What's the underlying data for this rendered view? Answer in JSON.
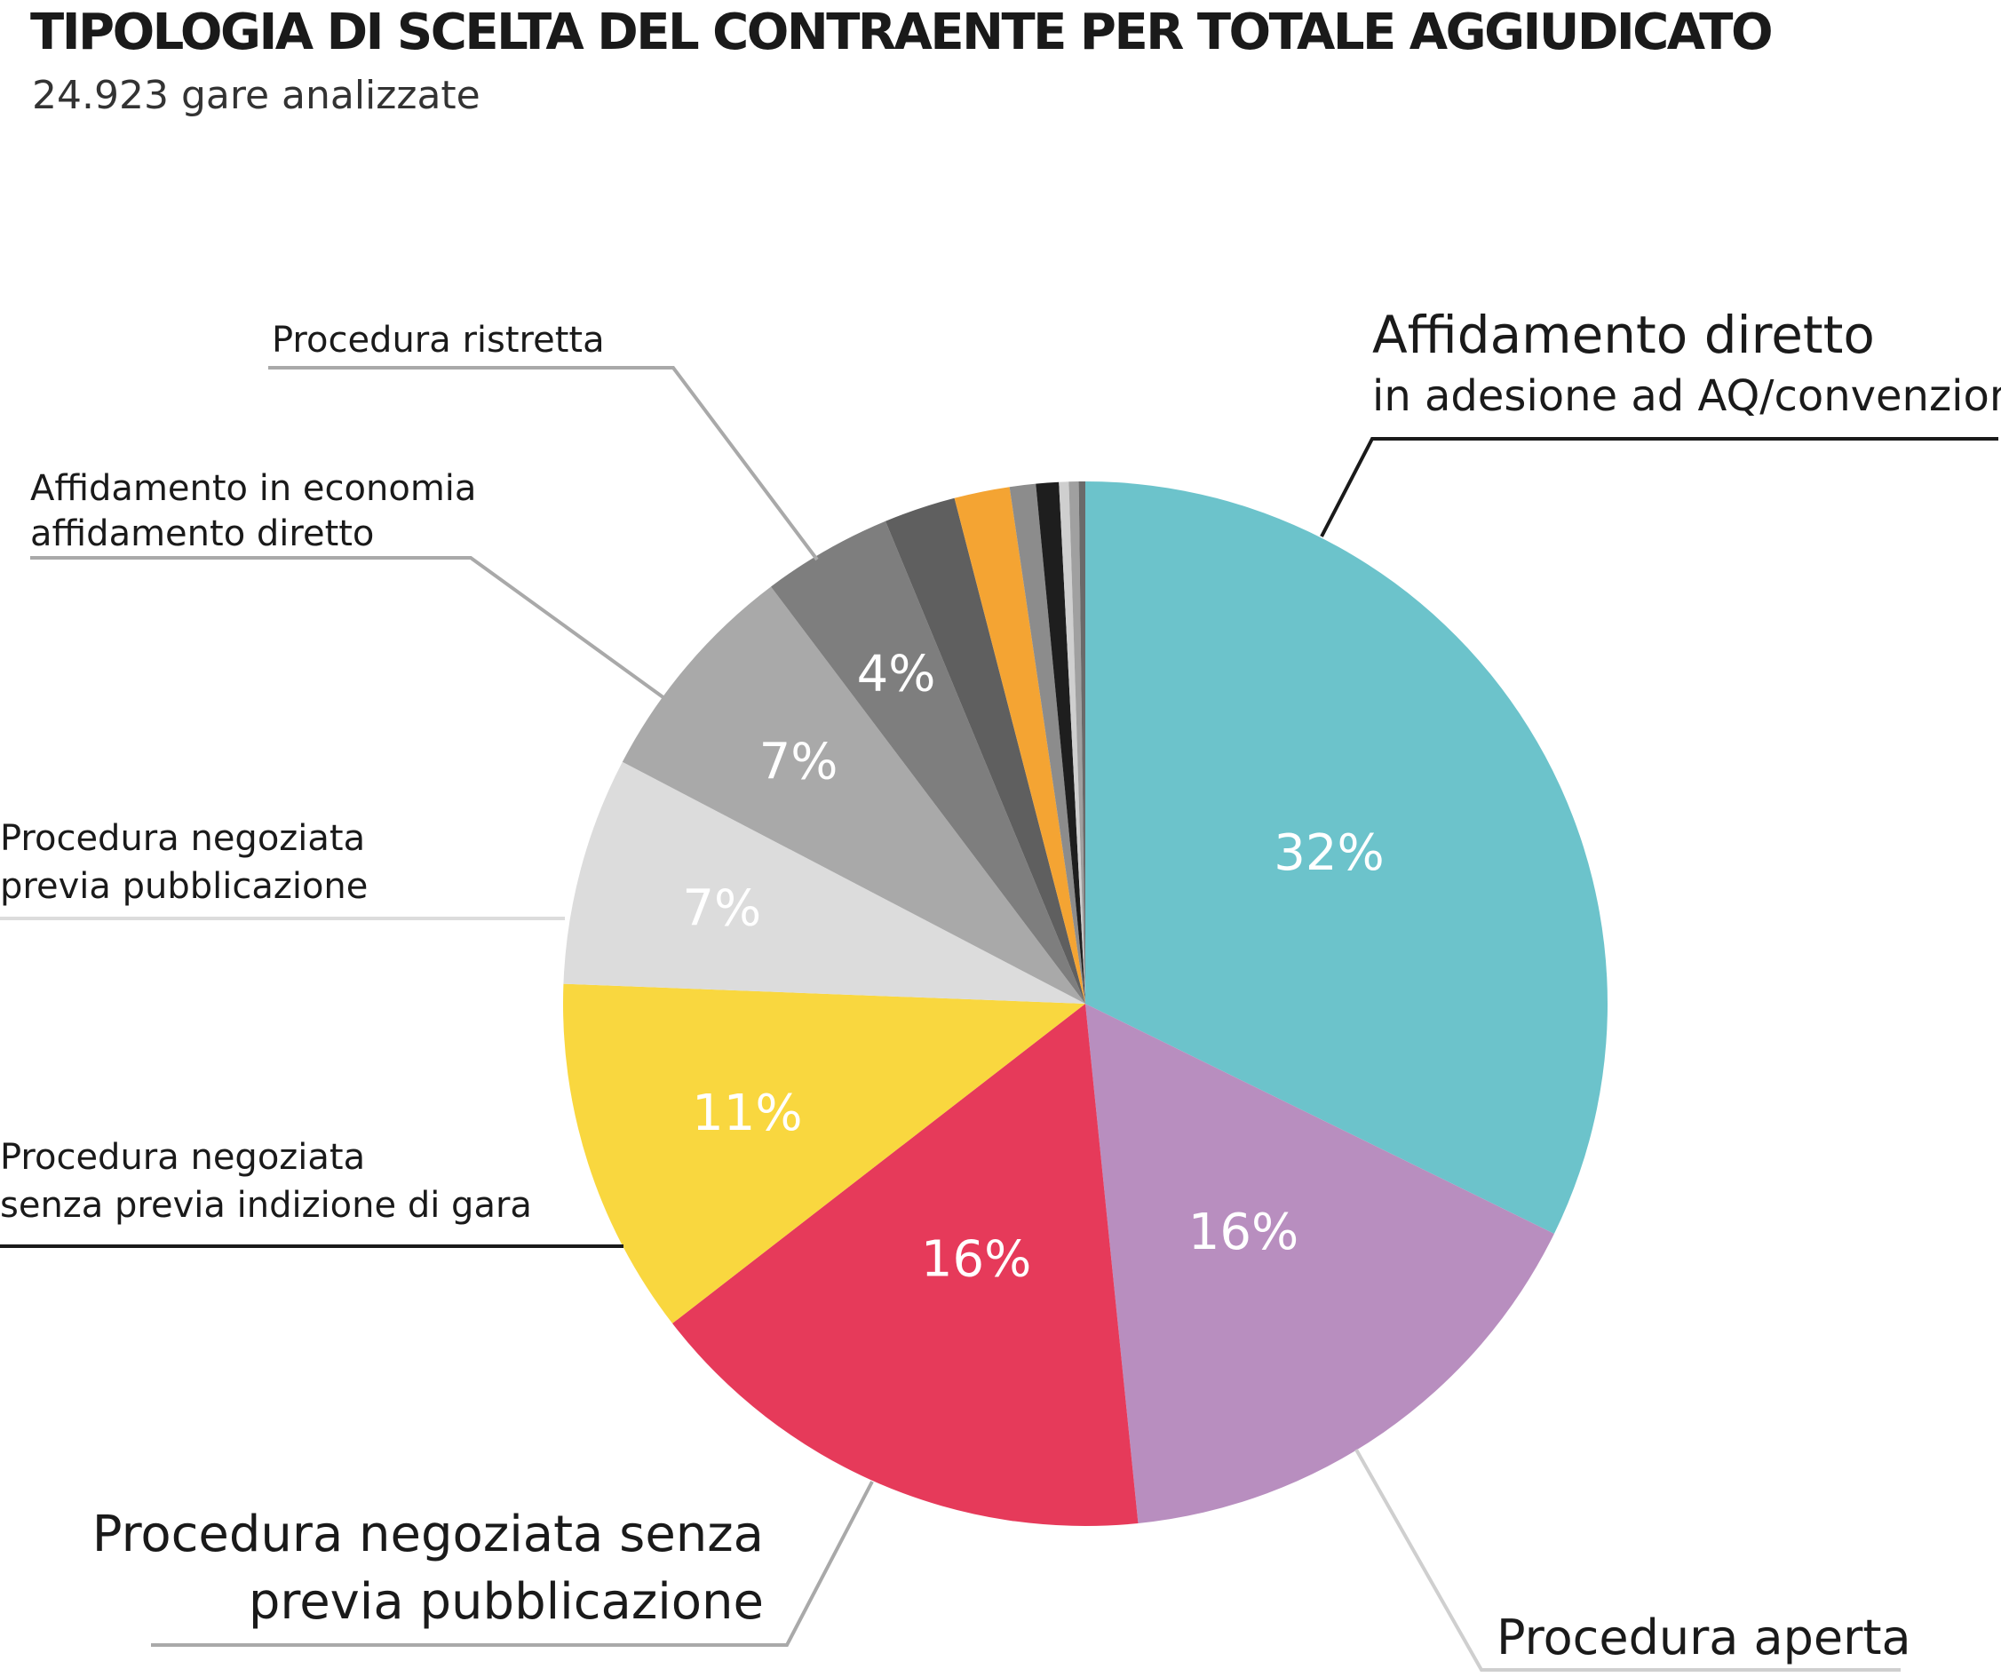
{
  "chart_data": {
    "type": "pie",
    "title": "TIPOLOGIA DI SCELTA DEL CONTRAENTE PER TOTALE AGGIUDICATO",
    "subtitle": "24.923 gare analizzate",
    "start_angle_deg": 0,
    "direction": "clockwise",
    "slices": [
      {
        "label_lines": [
          "Affidamento diretto",
          "in adesione ad AQ/convenzione"
        ],
        "value": 32,
        "display": "32%",
        "color": "#6cc3cb"
      },
      {
        "label_lines": [
          "Procedura aperta"
        ],
        "value": 16,
        "display": "16%",
        "color": "#b88ebf"
      },
      {
        "label_lines": [
          "Procedura negoziata senza",
          "previa pubblicazione"
        ],
        "value": 16,
        "display": "16%",
        "color": "#e63a5a"
      },
      {
        "label_lines": [
          "Procedura negoziata",
          "senza previa indizione di gara"
        ],
        "value": 11,
        "display": "11%",
        "color": "#f9d73f"
      },
      {
        "label_lines": [
          "Procedura negoziata",
          "previa pubblicazione"
        ],
        "value": 7,
        "display": "7%",
        "color": "#dcdcdc"
      },
      {
        "label_lines": [
          "Affidamento in economia",
          "affidamento diretto"
        ],
        "value": 7,
        "display": "7%",
        "color": "#a9a9a9"
      },
      {
        "label_lines": [
          "Procedura ristretta"
        ],
        "value": 4,
        "display": "4%",
        "color": "#7e7e7e"
      },
      {
        "value": 2.2,
        "color": "#5f5f5f"
      },
      {
        "value": 1.7,
        "color": "#f4a433"
      },
      {
        "value": 0.8,
        "color": "#8c8c8c"
      },
      {
        "value": 0.7,
        "color": "#1e1e1e"
      },
      {
        "value": 0.3,
        "color": "#cfcfcf"
      },
      {
        "value": 0.3,
        "color": "#a0a0a0"
      },
      {
        "value": 0.2,
        "color": "#6a6a6a"
      }
    ]
  }
}
